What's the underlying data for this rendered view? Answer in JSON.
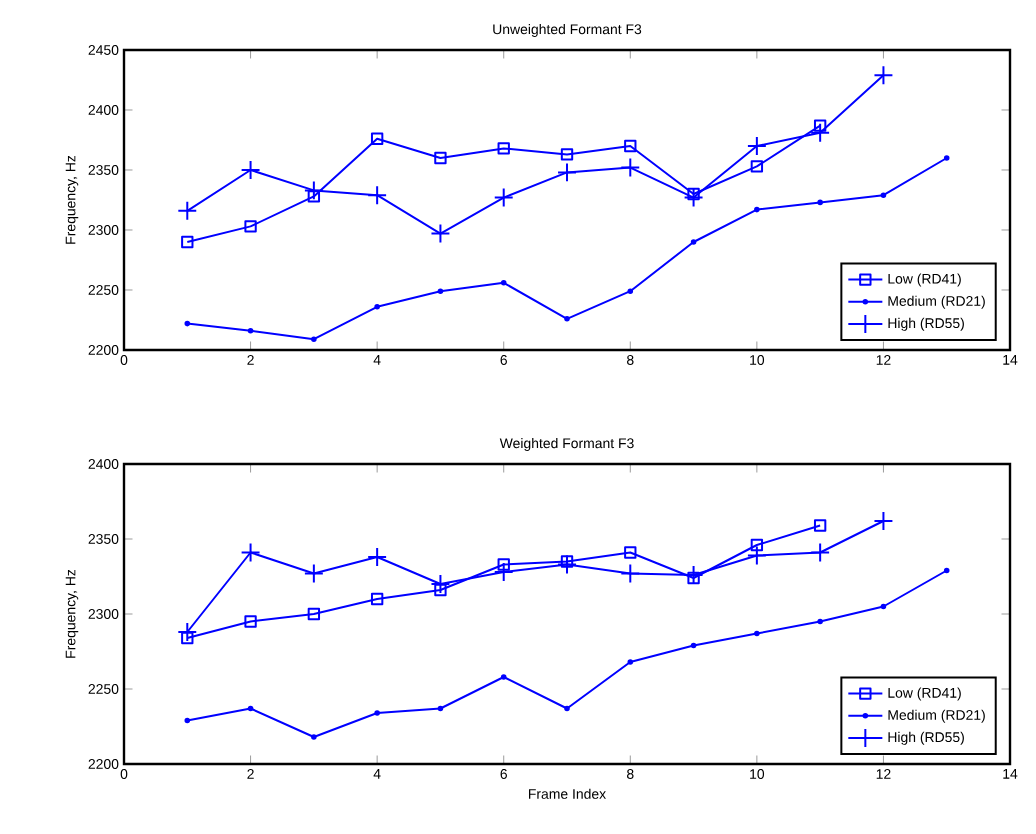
{
  "chart_data": [
    {
      "type": "line",
      "title": "Unweighted Formant F3",
      "ylabel": "Frequency, Hz",
      "xlim": [
        0,
        14
      ],
      "xticks": [
        0,
        2,
        4,
        6,
        8,
        10,
        12,
        14
      ],
      "ylim": [
        2200,
        2450
      ],
      "yticks": [
        2200,
        2250,
        2300,
        2350,
        2400,
        2450
      ],
      "legend": "bottom right",
      "grid": false,
      "line_style": "solid",
      "series": [
        {
          "name": "Low (RD41)",
          "color": "#0000ff",
          "marker": "square",
          "x": [
            1,
            2,
            3,
            4,
            5,
            6,
            7,
            8,
            9,
            10,
            11
          ],
          "values": [
            2290,
            2303,
            2328,
            2376,
            2360,
            2368,
            2363,
            2370,
            2330,
            2353,
            2387
          ]
        },
        {
          "name": "Medium (RD21)",
          "color": "#0000ff",
          "marker": "circle",
          "x": [
            1,
            2,
            3,
            4,
            5,
            6,
            7,
            8,
            9,
            10,
            11,
            12,
            13
          ],
          "values": [
            2222,
            2216,
            2209,
            2236,
            2249,
            2256,
            2226,
            2249,
            2290,
            2317,
            2323,
            2329,
            2360
          ]
        },
        {
          "name": "High (RD55)",
          "color": "#0000ff",
          "marker": "cross",
          "x": [
            1,
            2,
            3,
            4,
            5,
            6,
            7,
            8,
            9,
            10,
            11,
            12
          ],
          "values": [
            2316,
            2350,
            2333,
            2329,
            2297,
            2327,
            2348,
            2352,
            2327,
            2370,
            2381,
            2429
          ]
        }
      ]
    },
    {
      "type": "line",
      "title": "Weighted Formant F3",
      "xlabel": "Frame Index",
      "ylabel": "Frequency, Hz",
      "xlim": [
        0,
        14
      ],
      "xticks": [
        0,
        2,
        4,
        6,
        8,
        10,
        12,
        14
      ],
      "ylim": [
        2200,
        2400
      ],
      "yticks": [
        2200,
        2250,
        2300,
        2350,
        2400
      ],
      "legend": "bottom right",
      "grid": false,
      "line_style": "solid",
      "series": [
        {
          "name": "Low (RD41)",
          "color": "#0000ff",
          "marker": "square",
          "x": [
            1,
            2,
            3,
            4,
            5,
            6,
            7,
            8,
            9,
            10,
            11
          ],
          "values": [
            2284,
            2295,
            2300,
            2310,
            2316,
            2333,
            2335,
            2341,
            2324,
            2346,
            2359
          ]
        },
        {
          "name": "Medium (RD21)",
          "color": "#0000ff",
          "marker": "circle",
          "x": [
            1,
            2,
            3,
            4,
            5,
            6,
            7,
            8,
            9,
            10,
            11,
            12,
            13
          ],
          "values": [
            2229,
            2237,
            2218,
            2234,
            2237,
            2258,
            2237,
            2268,
            2279,
            2287,
            2295,
            2305,
            2329
          ]
        },
        {
          "name": "High (RD55)",
          "color": "#0000ff",
          "marker": "cross",
          "x": [
            1,
            2,
            3,
            4,
            5,
            6,
            7,
            8,
            9,
            10,
            11,
            12
          ],
          "values": [
            2288,
            2341,
            2327,
            2338,
            2320,
            2328,
            2333,
            2327,
            2326,
            2339,
            2341,
            2362
          ]
        }
      ]
    }
  ]
}
